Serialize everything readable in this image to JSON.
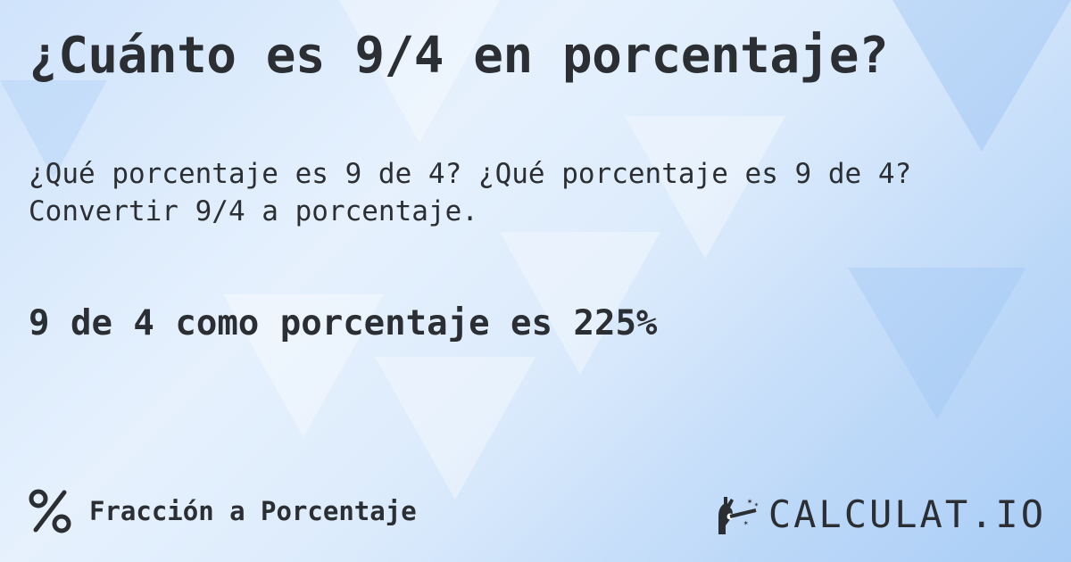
{
  "title": "¿Cuánto es 9/4 en porcentaje?",
  "subtitle_line1": "¿Qué porcentaje es 9 de 4? ¿Qué porcentaje es 9 de 4?",
  "subtitle_line2": "Convertir 9/4 a porcentaje.",
  "result": "9 de 4 como porcentaje es 225%",
  "category": {
    "icon": "percent-icon",
    "label": "Fracción a Porcentaje"
  },
  "logo": {
    "icon": "magic-hand-icon",
    "text": "CALCULAT.IO"
  },
  "colors": {
    "text": "#2b2f33",
    "background": "#d6e8fc"
  }
}
